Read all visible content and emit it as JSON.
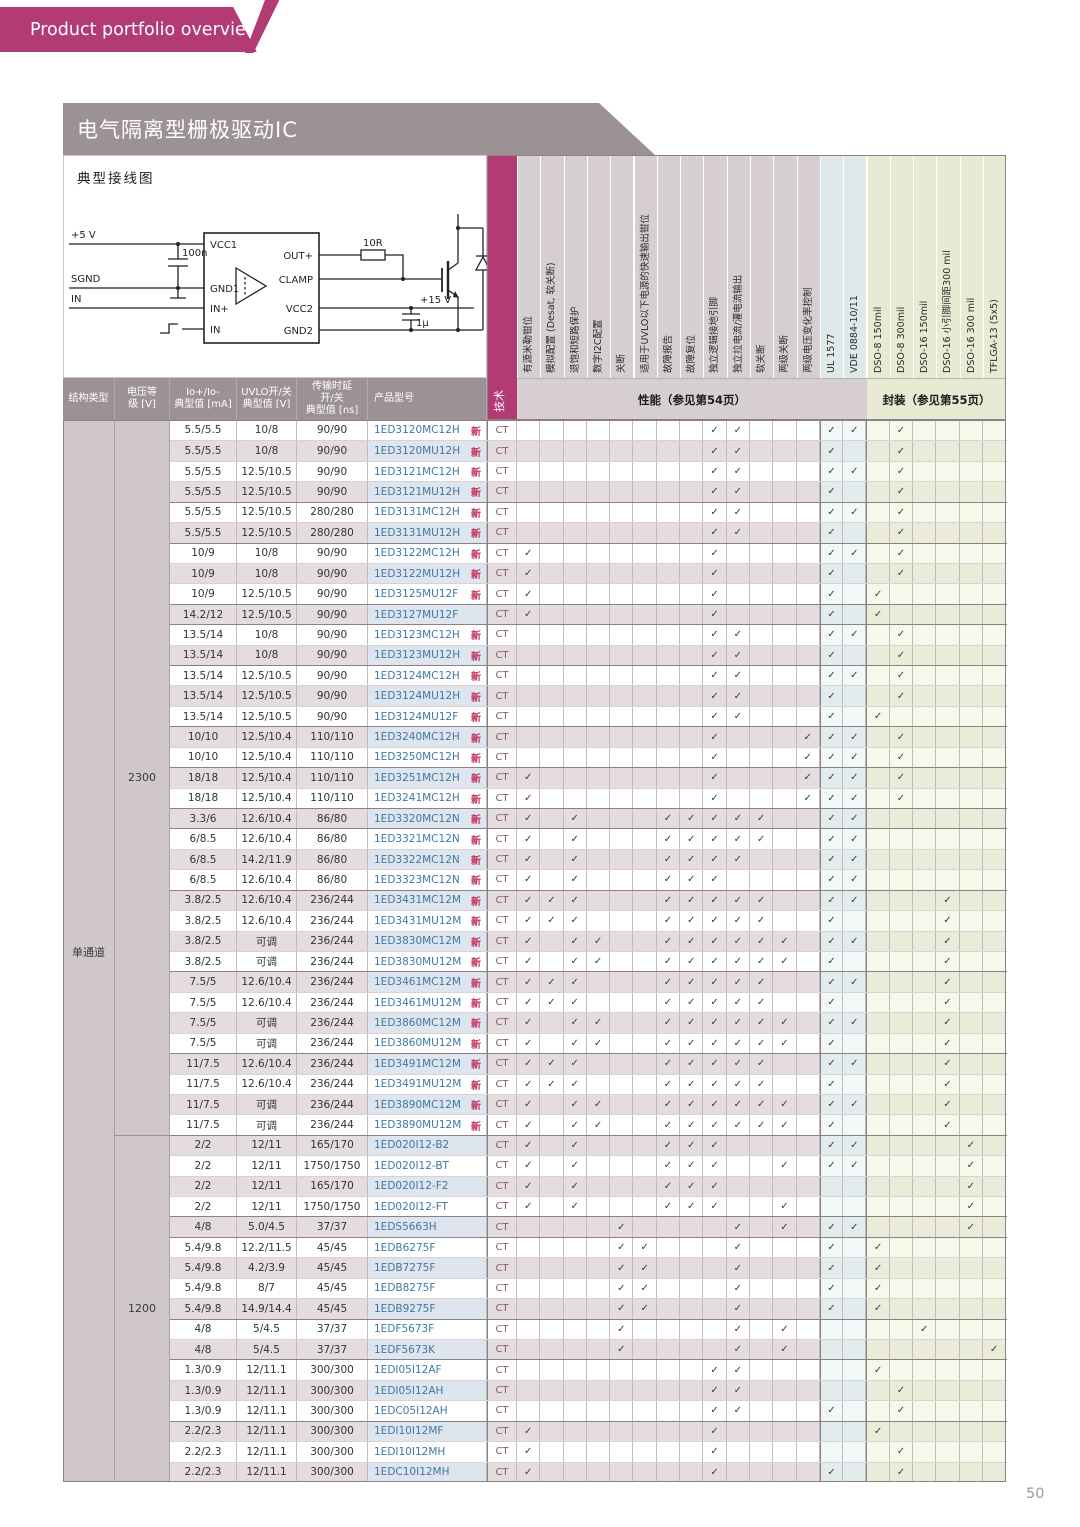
{
  "banner": {
    "label": "Product portfolio overview"
  },
  "section": {
    "title": "电气隔离型栅极驱动IC",
    "diagram_title": "典型接线图"
  },
  "diagram": {
    "labels": {
      "v5": "+5 V",
      "sgnd": "SGND",
      "in": "IN",
      "c100n": "100n",
      "vcc1": "VCC1",
      "gnd1": "GND1",
      "inp": "IN+",
      "in2": "IN",
      "outp": "OUT+",
      "clamp": "CLAMP",
      "vcc2": "VCC2",
      "gnd2": "GND2",
      "r10": "10R",
      "v15": "+15 V",
      "c1u": "1µ"
    }
  },
  "page_number": "50",
  "colors": {
    "accent": "#b23b76",
    "header_gray": "#9c9295",
    "link_blue": "#4077a1",
    "new_red": "#c2315c"
  },
  "table": {
    "headers": {
      "structure": "结构类型",
      "voltage": "电压等\n级 [V]",
      "io": "Io+/Io-\n典型值 [mA]",
      "uvlo": "UVLO开/关\n典型值 [V]",
      "delay": "传输时延\n开/关\n典型值 [ns]",
      "part": "产品型号",
      "tech": "技术",
      "perf_band": "性能（参见第54页）",
      "pkg_band": "封装（参见第55页）",
      "new_badge": "新",
      "check_mark": "✓"
    },
    "check_columns": [
      {
        "label": "有源米勒钳位",
        "group": "perf"
      },
      {
        "label": "模拟配置 (Desat, 软关断)",
        "group": "perf"
      },
      {
        "label": "退饱和短路保护",
        "group": "perf"
      },
      {
        "label": "数字I2C配置",
        "group": "perf"
      },
      {
        "label": "关断",
        "group": "perf"
      },
      {
        "label": "适用于UVLO以下电源的快速输出钳位",
        "group": "perf"
      },
      {
        "label": "故障报告",
        "group": "perf"
      },
      {
        "label": "故障复位",
        "group": "perf"
      },
      {
        "label": "独立逻辑接地引脚",
        "group": "perf"
      },
      {
        "label": "独立拉电流/灌电流输出",
        "group": "perf"
      },
      {
        "label": "软关断",
        "group": "perf"
      },
      {
        "label": "两级关断",
        "group": "perf"
      },
      {
        "label": "两级电压变化率控制",
        "group": "perf"
      },
      {
        "label": "UL 1577",
        "group": "std"
      },
      {
        "label": "VDE 0884-10/11",
        "group": "std"
      },
      {
        "label": "DSO-8 150mil",
        "group": "pkg"
      },
      {
        "label": "DSO-8 300mil",
        "group": "pkg"
      },
      {
        "label": "DSO-16 150mil",
        "group": "pkg"
      },
      {
        "label": "DSO-16 小引脚间距300 mil",
        "group": "pkg"
      },
      {
        "label": "DSO-16 300 mil",
        "group": "pkg"
      },
      {
        "label": "TFLGA-13 (5x5)",
        "group": "pkg"
      }
    ],
    "structure_group": "单通道",
    "voltage_groups": [
      {
        "label": "2300",
        "rows": 35
      },
      {
        "label": "1200",
        "rows": 17
      }
    ],
    "heavy_rows": [
      5,
      7,
      10,
      11,
      13,
      16,
      18,
      20,
      21,
      24,
      28,
      32,
      36,
      40,
      41,
      45,
      47,
      50
    ],
    "rows": [
      {
        "io": "5.5/5.5",
        "uv": "10/8",
        "td": "90/90",
        "p": "1ED3120MC12H",
        "n": 1,
        "t": "CT",
        "c": [
          8,
          9,
          13,
          14,
          16
        ]
      },
      {
        "io": "5.5/5.5",
        "uv": "10/8",
        "td": "90/90",
        "p": "1ED3120MU12H",
        "n": 1,
        "t": "CT",
        "c": [
          8,
          9,
          13,
          16
        ]
      },
      {
        "io": "5.5/5.5",
        "uv": "12.5/10.5",
        "td": "90/90",
        "p": "1ED3121MC12H",
        "n": 1,
        "t": "CT",
        "c": [
          8,
          9,
          13,
          14,
          16
        ]
      },
      {
        "io": "5.5/5.5",
        "uv": "12.5/10.5",
        "td": "90/90",
        "p": "1ED3121MU12H",
        "n": 1,
        "t": "CT",
        "c": [
          8,
          9,
          13,
          16
        ]
      },
      {
        "io": "5.5/5.5",
        "uv": "12.5/10.5",
        "td": "280/280",
        "p": "1ED3131MC12H",
        "n": 1,
        "t": "CT",
        "c": [
          8,
          9,
          13,
          14,
          16
        ]
      },
      {
        "io": "5.5/5.5",
        "uv": "12.5/10.5",
        "td": "280/280",
        "p": "1ED3131MU12H",
        "n": 1,
        "t": "CT",
        "c": [
          8,
          9,
          13,
          16
        ]
      },
      {
        "io": "10/9",
        "uv": "10/8",
        "td": "90/90",
        "p": "1ED3122MC12H",
        "n": 1,
        "t": "CT",
        "c": [
          0,
          8,
          13,
          14,
          16
        ]
      },
      {
        "io": "10/9",
        "uv": "10/8",
        "td": "90/90",
        "p": "1ED3122MU12H",
        "n": 1,
        "t": "CT",
        "c": [
          0,
          8,
          13,
          16
        ]
      },
      {
        "io": "10/9",
        "uv": "12.5/10.5",
        "td": "90/90",
        "p": "1ED3125MU12F",
        "n": 1,
        "t": "CT",
        "c": [
          0,
          8,
          13,
          15
        ]
      },
      {
        "io": "14.2/12",
        "uv": "12.5/10.5",
        "td": "90/90",
        "p": "1ED3127MU12F",
        "n": 0,
        "t": "CT",
        "c": [
          0,
          8,
          13,
          15
        ]
      },
      {
        "io": "13.5/14",
        "uv": "10/8",
        "td": "90/90",
        "p": "1ED3123MC12H",
        "n": 1,
        "t": "CT",
        "c": [
          8,
          9,
          13,
          14,
          16
        ]
      },
      {
        "io": "13.5/14",
        "uv": "10/8",
        "td": "90/90",
        "p": "1ED3123MU12H",
        "n": 1,
        "t": "CT",
        "c": [
          8,
          9,
          13,
          16
        ]
      },
      {
        "io": "13.5/14",
        "uv": "12.5/10.5",
        "td": "90/90",
        "p": "1ED3124MC12H",
        "n": 1,
        "t": "CT",
        "c": [
          8,
          9,
          13,
          14,
          16
        ]
      },
      {
        "io": "13.5/14",
        "uv": "12.5/10.5",
        "td": "90/90",
        "p": "1ED3124MU12H",
        "n": 1,
        "t": "CT",
        "c": [
          8,
          9,
          13,
          16
        ]
      },
      {
        "io": "13.5/14",
        "uv": "12.5/10.5",
        "td": "90/90",
        "p": "1ED3124MU12F",
        "n": 1,
        "t": "CT",
        "c": [
          8,
          9,
          13,
          15
        ]
      },
      {
        "io": "10/10",
        "uv": "12.5/10.4",
        "td": "110/110",
        "p": "1ED3240MC12H",
        "n": 1,
        "t": "CT",
        "c": [
          8,
          12,
          13,
          14,
          16
        ]
      },
      {
        "io": "10/10",
        "uv": "12.5/10.4",
        "td": "110/110",
        "p": "1ED3250MC12H",
        "n": 1,
        "t": "CT",
        "c": [
          8,
          12,
          13,
          14,
          16
        ]
      },
      {
        "io": "18/18",
        "uv": "12.5/10.4",
        "td": "110/110",
        "p": "1ED3251MC12H",
        "n": 1,
        "t": "CT",
        "c": [
          0,
          8,
          12,
          13,
          14,
          16
        ]
      },
      {
        "io": "18/18",
        "uv": "12.5/10.4",
        "td": "110/110",
        "p": "1ED3241MC12H",
        "n": 1,
        "t": "CT",
        "c": [
          0,
          8,
          12,
          13,
          14,
          16
        ]
      },
      {
        "io": "3.3/6",
        "uv": "12.6/10.4",
        "td": "86/80",
        "p": "1ED3320MC12N",
        "n": 1,
        "t": "CT",
        "c": [
          0,
          2,
          6,
          7,
          8,
          9,
          10,
          13,
          14
        ]
      },
      {
        "io": "6/8.5",
        "uv": "12.6/10.4",
        "td": "86/80",
        "p": "1ED3321MC12N",
        "n": 1,
        "t": "CT",
        "c": [
          0,
          2,
          6,
          7,
          8,
          9,
          10,
          13,
          14
        ]
      },
      {
        "io": "6/8.5",
        "uv": "14.2/11.9",
        "td": "86/80",
        "p": "1ED3322MC12N",
        "n": 1,
        "t": "CT",
        "c": [
          0,
          2,
          6,
          7,
          8,
          9,
          13,
          14
        ]
      },
      {
        "io": "6/8.5",
        "uv": "12.6/10.4",
        "td": "86/80",
        "p": "1ED3323MC12N",
        "n": 1,
        "t": "CT",
        "c": [
          0,
          2,
          6,
          7,
          8,
          13,
          14
        ]
      },
      {
        "io": "3.8/2.5",
        "uv": "12.6/10.4",
        "td": "236/244",
        "p": "1ED3431MC12M",
        "n": 1,
        "t": "CT",
        "c": [
          0,
          1,
          2,
          6,
          7,
          8,
          9,
          10,
          13,
          14,
          18
        ]
      },
      {
        "io": "3.8/2.5",
        "uv": "12.6/10.4",
        "td": "236/244",
        "p": "1ED3431MU12M",
        "n": 1,
        "t": "CT",
        "c": [
          0,
          1,
          2,
          6,
          7,
          8,
          9,
          10,
          13,
          18
        ]
      },
      {
        "io": "3.8/2.5",
        "uv": "可调",
        "td": "236/244",
        "p": "1ED3830MC12M",
        "n": 1,
        "t": "CT",
        "c": [
          0,
          2,
          3,
          6,
          7,
          8,
          9,
          10,
          11,
          13,
          14,
          18
        ]
      },
      {
        "io": "3.8/2.5",
        "uv": "可调",
        "td": "236/244",
        "p": "1ED3830MU12M",
        "n": 1,
        "t": "CT",
        "c": [
          0,
          2,
          3,
          6,
          7,
          8,
          9,
          10,
          11,
          13,
          18
        ]
      },
      {
        "io": "7.5/5",
        "uv": "12.6/10.4",
        "td": "236/244",
        "p": "1ED3461MC12M",
        "n": 1,
        "t": "CT",
        "c": [
          0,
          1,
          2,
          6,
          7,
          8,
          9,
          10,
          13,
          14,
          18
        ]
      },
      {
        "io": "7.5/5",
        "uv": "12.6/10.4",
        "td": "236/244",
        "p": "1ED3461MU12M",
        "n": 1,
        "t": "CT",
        "c": [
          0,
          1,
          2,
          6,
          7,
          8,
          9,
          10,
          13,
          18
        ]
      },
      {
        "io": "7.5/5",
        "uv": "可调",
        "td": "236/244",
        "p": "1ED3860MC12M",
        "n": 1,
        "t": "CT",
        "c": [
          0,
          2,
          3,
          6,
          7,
          8,
          9,
          10,
          11,
          13,
          14,
          18
        ]
      },
      {
        "io": "7.5/5",
        "uv": "可调",
        "td": "236/244",
        "p": "1ED3860MU12M",
        "n": 1,
        "t": "CT",
        "c": [
          0,
          2,
          3,
          6,
          7,
          8,
          9,
          10,
          11,
          13,
          18
        ]
      },
      {
        "io": "11/7.5",
        "uv": "12.6/10.4",
        "td": "236/244",
        "p": "1ED3491MC12M",
        "n": 1,
        "t": "CT",
        "c": [
          0,
          1,
          2,
          6,
          7,
          8,
          9,
          10,
          13,
          14,
          18
        ]
      },
      {
        "io": "11/7.5",
        "uv": "12.6/10.4",
        "td": "236/244",
        "p": "1ED3491MU12M",
        "n": 1,
        "t": "CT",
        "c": [
          0,
          1,
          2,
          6,
          7,
          8,
          9,
          10,
          13,
          18
        ]
      },
      {
        "io": "11/7.5",
        "uv": "可调",
        "td": "236/244",
        "p": "1ED3890MC12M",
        "n": 1,
        "t": "CT",
        "c": [
          0,
          2,
          3,
          6,
          7,
          8,
          9,
          10,
          11,
          13,
          14,
          18
        ]
      },
      {
        "io": "11/7.5",
        "uv": "可调",
        "td": "236/244",
        "p": "1ED3890MU12M",
        "n": 1,
        "t": "CT",
        "c": [
          0,
          2,
          3,
          6,
          7,
          8,
          9,
          10,
          11,
          13,
          18
        ]
      },
      {
        "io": "2/2",
        "uv": "12/11",
        "td": "165/170",
        "p": "1ED020I12-B2",
        "n": 0,
        "t": "CT",
        "c": [
          0,
          2,
          6,
          7,
          8,
          13,
          14,
          19
        ]
      },
      {
        "io": "2/2",
        "uv": "12/11",
        "td": "1750/1750",
        "p": "1ED020I12-BT",
        "n": 0,
        "t": "CT",
        "c": [
          0,
          2,
          6,
          7,
          8,
          11,
          13,
          14,
          19
        ]
      },
      {
        "io": "2/2",
        "uv": "12/11",
        "td": "165/170",
        "p": "1ED020I12-F2",
        "n": 0,
        "t": "CT",
        "c": [
          0,
          2,
          6,
          7,
          8,
          19
        ]
      },
      {
        "io": "2/2",
        "uv": "12/11",
        "td": "1750/1750",
        "p": "1ED020I12-FT",
        "n": 0,
        "t": "CT",
        "c": [
          0,
          2,
          6,
          7,
          8,
          11,
          19
        ]
      },
      {
        "io": "4/8",
        "uv": "5.0/4.5",
        "td": "37/37",
        "p": "1EDS5663H",
        "n": 0,
        "t": "CT",
        "c": [
          4,
          9,
          11,
          13,
          14,
          19
        ]
      },
      {
        "io": "5.4/9.8",
        "uv": "12.2/11.5",
        "td": "45/45",
        "p": "1EDB6275F",
        "n": 0,
        "t": "CT",
        "c": [
          4,
          5,
          9,
          13,
          15
        ]
      },
      {
        "io": "5.4/9.8",
        "uv": "4.2/3.9",
        "td": "45/45",
        "p": "1EDB7275F",
        "n": 0,
        "t": "CT",
        "c": [
          4,
          5,
          9,
          13,
          15
        ]
      },
      {
        "io": "5.4/9.8",
        "uv": "8/7",
        "td": "45/45",
        "p": "1EDB8275F",
        "n": 0,
        "t": "CT",
        "c": [
          4,
          5,
          9,
          13,
          15
        ]
      },
      {
        "io": "5.4/9.8",
        "uv": "14.9/14.4",
        "td": "45/45",
        "p": "1EDB9275F",
        "n": 0,
        "t": "CT",
        "c": [
          4,
          5,
          9,
          13,
          15
        ]
      },
      {
        "io": "4/8",
        "uv": "5/4.5",
        "td": "37/37",
        "p": "1EDF5673F",
        "n": 0,
        "t": "CT",
        "c": [
          4,
          9,
          11,
          17
        ]
      },
      {
        "io": "4/8",
        "uv": "5/4.5",
        "td": "37/37",
        "p": "1EDF5673K",
        "n": 0,
        "t": "CT",
        "c": [
          4,
          9,
          11,
          20
        ]
      },
      {
        "io": "1.3/0.9",
        "uv": "12/11.1",
        "td": "300/300",
        "p": "1EDI05I12AF",
        "n": 0,
        "t": "CT",
        "c": [
          8,
          9,
          15
        ]
      },
      {
        "io": "1.3/0.9",
        "uv": "12/11.1",
        "td": "300/300",
        "p": "1EDI05I12AH",
        "n": 0,
        "t": "CT",
        "c": [
          8,
          9,
          16
        ]
      },
      {
        "io": "1.3/0.9",
        "uv": "12/11.1",
        "td": "300/300",
        "p": "1EDC05I12AH",
        "n": 0,
        "t": "CT",
        "c": [
          8,
          9,
          13,
          16
        ]
      },
      {
        "io": "2.2/2.3",
        "uv": "12/11.1",
        "td": "300/300",
        "p": "1EDI10I12MF",
        "n": 0,
        "t": "CT",
        "c": [
          0,
          8,
          15
        ]
      },
      {
        "io": "2.2/2.3",
        "uv": "12/11.1",
        "td": "300/300",
        "p": "1EDI10I12MH",
        "n": 0,
        "t": "CT",
        "c": [
          0,
          8,
          16
        ]
      },
      {
        "io": "2.2/2.3",
        "uv": "12/11.1",
        "td": "300/300",
        "p": "1EDC10I12MH",
        "n": 0,
        "t": "CT",
        "c": [
          0,
          8,
          13,
          16
        ]
      }
    ]
  }
}
